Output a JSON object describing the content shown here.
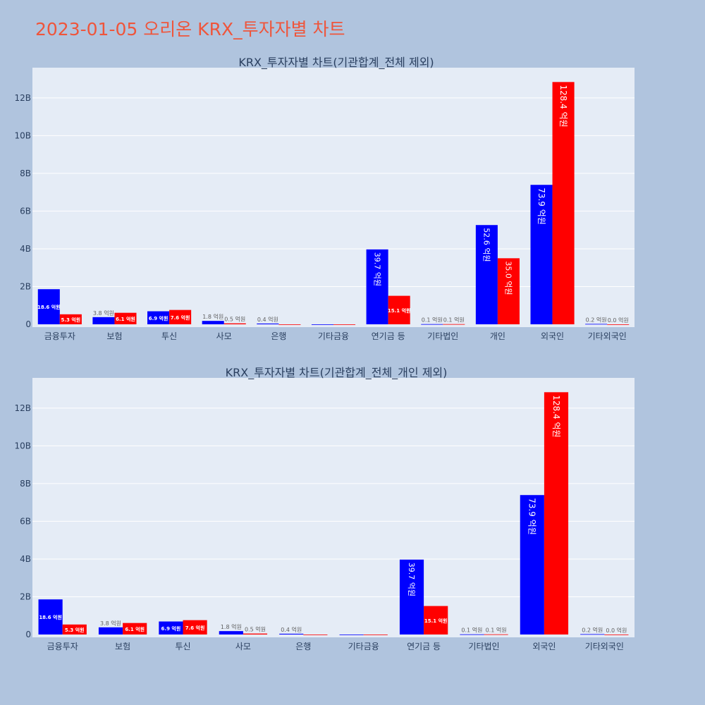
{
  "page": {
    "title": "2023-01-05 오리온 KRX_투자자별 차트"
  },
  "colors": {
    "background": "#b0c4de",
    "plot_bg": "#e5ecf6",
    "title": "#ef553b",
    "buy": "#0000ff",
    "sell": "#ff0000"
  },
  "chart_data": [
    {
      "type": "bar",
      "title": "KRX_투자자별 차트(기관합계_전체 제외)",
      "categories": [
        "금융투자",
        "보험",
        "투신",
        "사모",
        "은행",
        "기타금융",
        "연기금 등",
        "기타법인",
        "개인",
        "외국인",
        "기타외국인"
      ],
      "series": [
        {
          "color": "#0000ff",
          "values": [
            1.86,
            0.38,
            0.69,
            0.18,
            0.04,
            0,
            3.97,
            0.01,
            5.26,
            7.39,
            0.02
          ],
          "labels": [
            "18.6 억원",
            "3.8 억원",
            "6.9 억원",
            "1.8 억원",
            "0.4 억원",
            "",
            "39.7 억원",
            "0.1 억원",
            "52.6 억원",
            "73.9 억원",
            "0.2 억원"
          ]
        },
        {
          "color": "#ff0000",
          "values": [
            0.53,
            0.61,
            0.76,
            0.05,
            0,
            0,
            1.51,
            0.01,
            3.5,
            12.84,
            0.0
          ],
          "labels": [
            "5.3 억원",
            "6.1 억원",
            "7.6 억원",
            "0.5 억원",
            "",
            "",
            "15.1 억원",
            "0.1 억원",
            "35.0 억원",
            "128.4 억원",
            "0.0 억원"
          ]
        }
      ],
      "ylim": [
        0,
        13.6
      ],
      "yticks": [
        0,
        2,
        4,
        6,
        8,
        10,
        12
      ],
      "ytick_labels": [
        "0",
        "2B",
        "4B",
        "6B",
        "8B",
        "10B",
        "12B"
      ],
      "grid": true
    },
    {
      "type": "bar",
      "title": "KRX_투자자별 차트(기관합계_전체_개인 제외)",
      "categories": [
        "금융투자",
        "보험",
        "투신",
        "사모",
        "은행",
        "기타금융",
        "연기금 등",
        "기타법인",
        "외국인",
        "기타외국인"
      ],
      "series": [
        {
          "color": "#0000ff",
          "values": [
            1.86,
            0.38,
            0.69,
            0.18,
            0.04,
            0,
            3.97,
            0.01,
            7.39,
            0.02
          ],
          "labels": [
            "18.6 억원",
            "3.8 억원",
            "6.9 억원",
            "1.8 억원",
            "0.4 억원",
            "",
            "39.7 억원",
            "0.1 억원",
            "73.9 억원",
            "0.2 억원"
          ]
        },
        {
          "color": "#ff0000",
          "values": [
            0.53,
            0.61,
            0.76,
            0.05,
            0,
            0,
            1.51,
            0.01,
            12.84,
            0.0
          ],
          "labels": [
            "5.3 억원",
            "6.1 억원",
            "7.6 억원",
            "0.5 억원",
            "",
            "",
            "15.1 억원",
            "0.1 억원",
            "128.4 억원",
            "0.0 억원"
          ]
        }
      ],
      "ylim": [
        0,
        13.6
      ],
      "yticks": [
        0,
        2,
        4,
        6,
        8,
        10,
        12
      ],
      "ytick_labels": [
        "0",
        "2B",
        "4B",
        "6B",
        "8B",
        "10B",
        "12B"
      ],
      "grid": true
    }
  ]
}
